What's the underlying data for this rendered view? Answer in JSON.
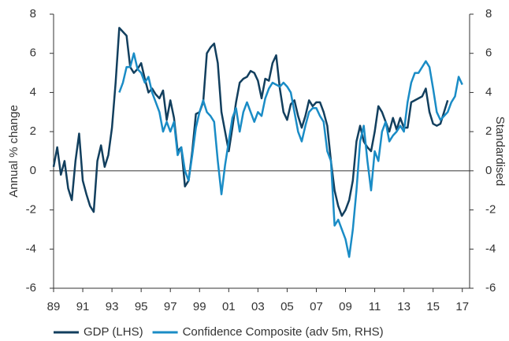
{
  "chart_data": {
    "type": "line",
    "y_label": "Annual % change",
    "y2_label": "Standardised",
    "xlim": [
      1989,
      2017.5
    ],
    "xticks": [
      {
        "value": 1989,
        "label": "89"
      },
      {
        "value": 1991,
        "label": "91"
      },
      {
        "value": 1993,
        "label": "93"
      },
      {
        "value": 1995,
        "label": "95"
      },
      {
        "value": 1997,
        "label": "97"
      },
      {
        "value": 1999,
        "label": "99"
      },
      {
        "value": 2001,
        "label": "01"
      },
      {
        "value": 2003,
        "label": "03"
      },
      {
        "value": 2005,
        "label": "05"
      },
      {
        "value": 2007,
        "label": "07"
      },
      {
        "value": 2009,
        "label": "09"
      },
      {
        "value": 2011,
        "label": "11"
      },
      {
        "value": 2013,
        "label": "13"
      },
      {
        "value": 2015,
        "label": "15"
      },
      {
        "value": 2017,
        "label": "17"
      }
    ],
    "ylim": [
      -6,
      8
    ],
    "yticks": [
      -6,
      -4,
      -2,
      0,
      2,
      4,
      6,
      8
    ],
    "y2lim": [
      -6,
      8
    ],
    "y2ticks": [
      -6,
      -4,
      -2,
      0,
      2,
      4,
      6,
      8
    ],
    "legend": "bottom",
    "series": [
      {
        "name": "GDP (LHS)",
        "color": "#123f5e",
        "axis": "y",
        "x": [
          1989,
          1989.25,
          1989.5,
          1989.75,
          1990,
          1990.25,
          1990.5,
          1990.75,
          1991,
          1991.25,
          1991.5,
          1991.75,
          1992,
          1992.25,
          1992.5,
          1992.75,
          1993,
          1993.25,
          1993.5,
          1993.75,
          1994,
          1994.25,
          1994.5,
          1994.75,
          1995,
          1995.25,
          1995.5,
          1995.75,
          1996,
          1996.25,
          1996.5,
          1996.75,
          1997,
          1997.25,
          1997.5,
          1997.75,
          1998,
          1998.25,
          1998.5,
          1998.75,
          1999,
          1999.25,
          1999.5,
          1999.75,
          2000,
          2000.25,
          2000.5,
          2000.75,
          2001,
          2001.25,
          2001.5,
          2001.75,
          2002,
          2002.25,
          2002.5,
          2002.75,
          2003,
          2003.25,
          2003.5,
          2003.75,
          2004,
          2004.25,
          2004.5,
          2004.75,
          2005,
          2005.25,
          2005.5,
          2005.75,
          2006,
          2006.25,
          2006.5,
          2006.75,
          2007,
          2007.25,
          2007.5,
          2007.75,
          2008,
          2008.25,
          2008.5,
          2008.75,
          2009,
          2009.25,
          2009.5,
          2009.75,
          2010,
          2010.25,
          2010.5,
          2010.75,
          2011,
          2011.25,
          2011.5,
          2011.75,
          2012,
          2012.25,
          2012.5,
          2012.75,
          2013,
          2013.25,
          2013.5,
          2013.75,
          2014,
          2014.25,
          2014.5,
          2014.75,
          2015,
          2015.25,
          2015.5,
          2015.75,
          2016
        ],
        "values": [
          0.2,
          1.2,
          -0.2,
          0.5,
          -0.9,
          -1.5,
          0.5,
          1.9,
          -0.5,
          -1.2,
          -1.8,
          -2.1,
          0.5,
          1.3,
          0.2,
          0.8,
          2.2,
          4.5,
          7.3,
          7.1,
          6.9,
          5.3,
          5.0,
          5.2,
          5.5,
          4.7,
          4.0,
          4.2,
          3.9,
          3.7,
          4.1,
          2.6,
          3.6,
          2.7,
          1.0,
          1.2,
          -0.8,
          -0.5,
          1.0,
          2.9,
          3.0,
          3.5,
          6.0,
          6.3,
          6.5,
          5.5,
          3.0,
          2.0,
          1.0,
          2.2,
          3.5,
          4.5,
          4.7,
          4.8,
          5.1,
          5.0,
          4.6,
          3.7,
          4.7,
          4.6,
          5.5,
          5.9,
          4.2,
          3.0,
          2.6,
          3.4,
          3.6,
          2.8,
          2.2,
          2.8,
          3.6,
          3.3,
          3.5,
          3.5,
          3.0,
          2.3,
          0.5,
          -1.0,
          -1.8,
          -2.3,
          -2.0,
          -1.5,
          -0.5,
          1.5,
          2.3,
          1.5,
          1.2,
          1.0,
          2.0,
          3.3,
          3.0,
          2.5,
          2.0,
          2.7,
          2.1,
          2.7,
          2.2,
          2.2,
          3.5,
          3.6,
          3.7,
          3.8,
          4.2,
          3.0,
          2.4,
          2.3,
          2.4,
          3.0,
          3.6
        ]
      },
      {
        "name": "Confidence Composite (adv 5m, RHS)",
        "color": "#1a8cc6",
        "axis": "y2",
        "x": [
          1993.5,
          1993.75,
          1994,
          1994.25,
          1994.5,
          1994.75,
          1995,
          1995.25,
          1995.5,
          1995.75,
          1996,
          1996.25,
          1996.5,
          1996.75,
          1997,
          1997.25,
          1997.5,
          1997.75,
          1998,
          1998.25,
          1998.5,
          1998.75,
          1999,
          1999.25,
          1999.5,
          1999.75,
          2000,
          2000.25,
          2000.5,
          2000.75,
          2001,
          2001.25,
          2001.5,
          2001.75,
          2002,
          2002.25,
          2002.5,
          2002.75,
          2003,
          2003.25,
          2003.5,
          2003.75,
          2004,
          2004.25,
          2004.5,
          2004.75,
          2005,
          2005.25,
          2005.5,
          2005.75,
          2006,
          2006.25,
          2006.5,
          2006.75,
          2007,
          2007.25,
          2007.5,
          2007.75,
          2008,
          2008.25,
          2008.5,
          2008.75,
          2009,
          2009.25,
          2009.5,
          2009.75,
          2010,
          2010.25,
          2010.5,
          2010.75,
          2011,
          2011.25,
          2011.5,
          2011.75,
          2012,
          2012.25,
          2012.5,
          2012.75,
          2013,
          2013.25,
          2013.5,
          2013.75,
          2014,
          2014.25,
          2014.5,
          2014.75,
          2015,
          2015.25,
          2015.5,
          2015.75,
          2016,
          2016.25,
          2016.5,
          2016.75,
          2017
        ],
        "values": [
          4.0,
          4.5,
          5.3,
          5.3,
          6.0,
          5.2,
          5.0,
          4.5,
          4.8,
          4.0,
          3.5,
          3.0,
          2.0,
          2.5,
          2.0,
          2.5,
          0.8,
          1.2,
          0.0,
          -0.5,
          0.8,
          2.2,
          3.0,
          3.6,
          3.0,
          2.8,
          2.5,
          0.5,
          -1.2,
          0.3,
          1.5,
          2.7,
          3.2,
          2.0,
          3.0,
          3.5,
          3.0,
          2.5,
          3.0,
          2.8,
          3.7,
          4.2,
          4.5,
          4.4,
          4.3,
          4.5,
          4.3,
          4.0,
          3.0,
          2.0,
          1.5,
          2.3,
          3.0,
          3.2,
          3.2,
          2.8,
          2.5,
          1.0,
          0.5,
          -2.8,
          -2.5,
          -3.0,
          -3.5,
          -4.4,
          -3.0,
          -1.0,
          1.5,
          2.3,
          0.5,
          -1.0,
          1.0,
          0.5,
          2.0,
          2.5,
          1.5,
          1.8,
          2.0,
          2.3,
          2.0,
          3.5,
          4.5,
          5.0,
          5.0,
          5.3,
          5.6,
          5.3,
          4.2,
          3.0,
          2.6,
          2.8,
          3.0,
          3.5,
          3.8,
          4.8,
          4.4
        ]
      }
    ]
  }
}
